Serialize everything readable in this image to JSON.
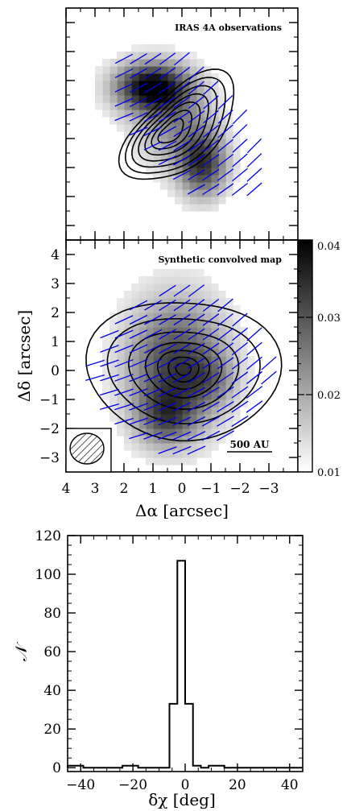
{
  "chart_data": [
    {
      "type": "heatmap",
      "panel": "top",
      "title": "IRAS 4A observations",
      "contours": "black",
      "vectors": "blue",
      "grayscale": true
    },
    {
      "type": "heatmap",
      "panel": "middle",
      "title": "Synthetic convolved map",
      "xlabel": "Δα [arcsec]",
      "ylabel": "Δδ [arcsec]",
      "xlim": [
        4,
        -4
      ],
      "ylim": [
        -3.5,
        4.5
      ],
      "x_ticks": [
        "4",
        "3",
        "2",
        "1",
        "0",
        "−1",
        "−2",
        "−3"
      ],
      "y_ticks": [
        "−3",
        "−2",
        "−1",
        "0",
        "1",
        "2",
        "3",
        "4"
      ],
      "scale_bar_label": "500 AU",
      "colorbar": {
        "range": [
          0.01,
          0.04
        ],
        "ticks": [
          "0.01",
          "0.02",
          "0.03",
          "0.04"
        ]
      }
    },
    {
      "type": "bar",
      "panel": "bottom",
      "histogram": true,
      "xlabel": "δχ [deg]",
      "ylabel": "𝒩",
      "xlim": [
        -45,
        45
      ],
      "ylim": [
        -2,
        120
      ],
      "x_ticks": [
        "−40",
        "−20",
        "0",
        "20",
        "40"
      ],
      "y_ticks": [
        "0",
        "20",
        "40",
        "60",
        "80",
        "100",
        "120"
      ],
      "bin_width": 3,
      "bins": [
        {
          "x": -42,
          "value": 1
        },
        {
          "x": -21,
          "value": 1
        },
        {
          "x": -6,
          "value": 0
        },
        {
          "x": -3,
          "value": 33
        },
        {
          "x": 0,
          "value": 107
        },
        {
          "x": 3,
          "value": 33
        },
        {
          "x": 6,
          "value": 1
        },
        {
          "x": 9,
          "value": 0
        },
        {
          "x": 12,
          "value": 1
        }
      ]
    }
  ]
}
